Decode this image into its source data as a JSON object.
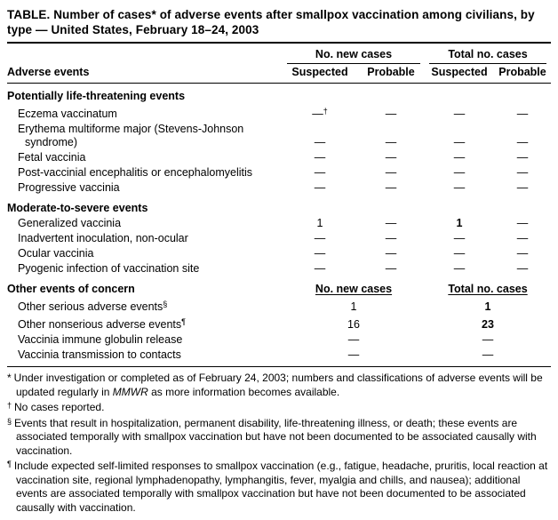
{
  "title": "TABLE. Number of cases* of adverse events after smallpox vaccination among civilians, by type — United States, February 18–24, 2003",
  "table": {
    "header": {
      "adverse_events": "Adverse events",
      "group_new": "No. new cases",
      "group_total": "Total no. cases",
      "suspected": "Suspected",
      "probable": "Probable"
    },
    "sections": [
      {
        "name": "Potentially life-threatening events",
        "rows": [
          {
            "label": "Eczema vaccinatum",
            "c1": "—",
            "c1_sup": "†",
            "c2": "—",
            "c3": "—",
            "c4": "—"
          },
          {
            "label": "Erythema multiforme major (Stevens-Johnson syndrome)",
            "c1": "—",
            "c2": "—",
            "c3": "—",
            "c4": "—"
          },
          {
            "label": "Fetal vaccinia",
            "c1": "—",
            "c2": "—",
            "c3": "—",
            "c4": "—"
          },
          {
            "label": "Post-vaccinial encephalitis or encephalomyelitis",
            "c1": "—",
            "c2": "—",
            "c3": "—",
            "c4": "—"
          },
          {
            "label": "Progressive vaccinia",
            "c1": "—",
            "c2": "—",
            "c3": "—",
            "c4": "—"
          }
        ]
      },
      {
        "name": "Moderate-to-severe events",
        "rows": [
          {
            "label": "Generalized vaccinia",
            "c1": "1",
            "c2": "—",
            "c3": "1",
            "c4": "—"
          },
          {
            "label": "Inadvertent inoculation, non-ocular",
            "c1": "—",
            "c2": "—",
            "c3": "—",
            "c4": "—"
          },
          {
            "label": "Ocular vaccinia",
            "c1": "—",
            "c2": "—",
            "c3": "—",
            "c4": "—"
          },
          {
            "label": "Pyogenic infection of vaccination site",
            "c1": "—",
            "c2": "—",
            "c3": "—",
            "c4": "—"
          }
        ]
      }
    ],
    "other_section": {
      "name": "Other events of concern",
      "col_new": "No. new cases",
      "col_total": "Total no. cases",
      "rows": [
        {
          "label": "Other serious adverse events",
          "label_sup": "§",
          "v1": "1",
          "v2": "1"
        },
        {
          "label": "Other nonserious adverse events",
          "label_sup": "¶",
          "v1": "16",
          "v2": "23"
        },
        {
          "label": "Vaccinia immune globulin release",
          "v1": "—",
          "v2": "—"
        },
        {
          "label": "Vaccinia transmission to contacts",
          "v1": "—",
          "v2": "—"
        }
      ]
    }
  },
  "footnotes": {
    "star": {
      "marker": "*",
      "pre": "Under investigation or completed as of February 24, 2003; numbers and classifications of adverse events will be updated regularly in ",
      "italic": "MMWR",
      "post": " as more information becomes available."
    },
    "dagger": {
      "marker": "†",
      "text": "No cases reported."
    },
    "section_mark": {
      "marker": "§",
      "text": "Events that result in hospitalization, permanent disability, life-threatening illness, or death; these events are associated temporally with smallpox vaccination but have not been documented to be associated causally with vaccination."
    },
    "pilcrow": {
      "marker": "¶",
      "text": "Include expected self-limited responses to smallpox vaccination (e.g., fatigue, headache, pruritis, local reaction at vaccination site, regional lymphadenopathy, lymphangitis, fever, myalgia and chills, and nausea); additional events are associated temporally with smallpox vaccination but have not been documented to be associated causally with vaccination."
    }
  }
}
